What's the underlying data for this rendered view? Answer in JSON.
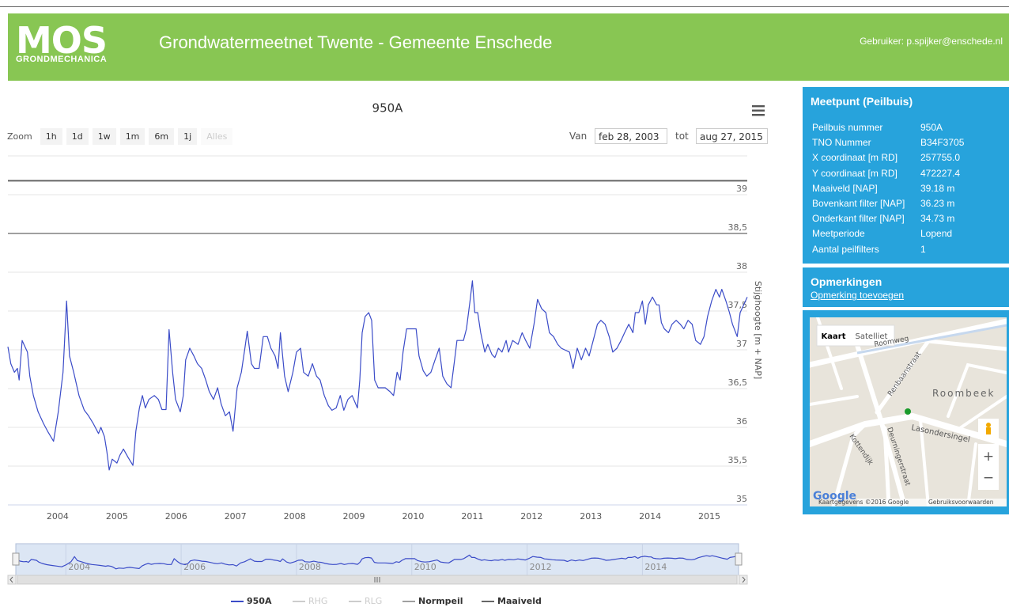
{
  "header": {
    "logo": "MOS",
    "logo_sub": "GRONDMECHANICA",
    "title": "Grondwatermeetnet Twente - Gemeente Enschede",
    "user": "Gebruiker: p.spijker@enschede.nl"
  },
  "chart_data": {
    "type": "line",
    "title": "950A",
    "zoom": {
      "label": "Zoom",
      "buttons": [
        "1h",
        "1d",
        "1w",
        "1m",
        "6m",
        "1j",
        "Alles"
      ]
    },
    "range": {
      "from_label": "Van",
      "from": "feb 28, 2003",
      "to_label": "tot",
      "to": "aug 27, 2015"
    },
    "y_label": "Stijghoogte [m + NAP]",
    "xlim": [
      2003.16,
      2015.64
    ],
    "xticks": [
      2004,
      2005,
      2006,
      2007,
      2008,
      2009,
      2010,
      2011,
      2012,
      2013,
      2014,
      2015
    ],
    "navigator_xticks": [
      2004,
      2006,
      2008,
      2010,
      2012,
      2014
    ],
    "ylim": [
      35,
      39.5
    ],
    "yticks": [
      35,
      {
        "value": 35.5,
        "label": "35,5"
      },
      36,
      {
        "value": 36.5,
        "label": "36,5"
      },
      37,
      {
        "value": 37.5,
        "label": "37,5"
      },
      38,
      {
        "value": 38.5,
        "label": "38,5"
      },
      39
    ],
    "grid": true,
    "series": [
      {
        "name": "950A",
        "color": "#3b4cc8",
        "width": 1.2,
        "visible": true,
        "x": [
          2003.16,
          2003.21,
          2003.27,
          2003.32,
          2003.35,
          2003.4,
          2003.49,
          2003.53,
          2003.59,
          2003.67,
          2003.76,
          2003.83,
          2003.93,
          2004.01,
          2004.09,
          2004.15,
          2004.2,
          2004.27,
          2004.36,
          2004.45,
          2004.52,
          2004.6,
          2004.69,
          2004.73,
          2004.79,
          2004.83,
          2004.87,
          2004.92,
          2005.0,
          2005.05,
          2005.11,
          2005.19,
          2005.27,
          2005.32,
          2005.38,
          2005.43,
          2005.48,
          2005.54,
          2005.63,
          2005.7,
          2005.76,
          2005.83,
          2005.88,
          2005.94,
          2005.99,
          2006.07,
          2006.12,
          2006.16,
          2006.23,
          2006.3,
          2006.36,
          2006.43,
          2006.5,
          2006.56,
          2006.63,
          2006.7,
          2006.76,
          2006.83,
          2006.9,
          2006.96,
          2007.03,
          2007.1,
          2007.16,
          2007.2,
          2007.27,
          2007.32,
          2007.4,
          2007.47,
          2007.54,
          2007.6,
          2007.67,
          2007.72,
          2007.76,
          2007.83,
          2007.89,
          2007.97,
          2008.03,
          2008.1,
          2008.15,
          2008.23,
          2008.3,
          2008.37,
          2008.43,
          2008.5,
          2008.57,
          2008.63,
          2008.7,
          2008.77,
          2008.83,
          2008.9,
          2008.97,
          2009.06,
          2009.1,
          2009.14,
          2009.19,
          2009.25,
          2009.3,
          2009.35,
          2009.41,
          2009.53,
          2009.61,
          2009.67,
          2009.73,
          2009.78,
          2009.83,
          2009.89,
          2010.05,
          2010.1,
          2010.17,
          2010.23,
          2010.3,
          2010.37,
          2010.44,
          2010.5,
          2010.57,
          2010.64,
          2010.7,
          2010.74,
          2010.85,
          2010.9,
          2010.96,
          2011.0,
          2011.04,
          2011.09,
          2011.14,
          2011.21,
          2011.26,
          2011.33,
          2011.38,
          2011.44,
          2011.5,
          2011.57,
          2011.61,
          2011.68,
          2011.77,
          2011.84,
          2011.9,
          2011.97,
          2012.04,
          2012.1,
          2012.17,
          2012.24,
          2012.3,
          2012.37,
          2012.44,
          2012.5,
          2012.64,
          2012.7,
          2012.77,
          2012.84,
          2012.91,
          2012.97,
          2013.04,
          2013.11,
          2013.17,
          2013.24,
          2013.31,
          2013.37,
          2013.44,
          2013.51,
          2013.57,
          2013.64,
          2013.71,
          2013.75,
          2013.81,
          2013.87,
          2013.92,
          2013.97,
          2014.04,
          2014.11,
          2014.15,
          2014.19,
          2014.24,
          2014.31,
          2014.37,
          2014.44,
          2014.51,
          2014.57,
          2014.64,
          2014.71,
          2014.77,
          2014.85,
          2014.91,
          2014.97,
          2015.04,
          2015.11,
          2015.17,
          2015.21,
          2015.28,
          2015.34,
          2015.39,
          2015.47,
          2015.52,
          2015.58,
          2015.64
        ],
        "values": [
          37.04,
          36.82,
          36.71,
          36.76,
          36.61,
          37.12,
          36.97,
          36.66,
          36.41,
          36.2,
          36.05,
          35.95,
          35.82,
          36.2,
          36.71,
          37.63,
          36.92,
          36.71,
          36.41,
          36.22,
          36.15,
          36.05,
          35.92,
          36.0,
          35.88,
          35.69,
          35.45,
          35.59,
          35.54,
          35.64,
          35.72,
          35.61,
          35.51,
          35.95,
          36.25,
          36.41,
          36.25,
          36.36,
          36.41,
          36.36,
          36.23,
          36.23,
          37.26,
          36.71,
          36.36,
          36.2,
          36.41,
          36.87,
          37.02,
          36.92,
          36.82,
          36.76,
          36.61,
          36.46,
          36.36,
          36.51,
          36.3,
          36.15,
          36.2,
          35.95,
          36.51,
          36.71,
          37.02,
          37.24,
          36.82,
          36.76,
          36.76,
          37.17,
          37.17,
          37.02,
          36.92,
          36.76,
          37.22,
          36.66,
          36.46,
          36.71,
          36.97,
          37.02,
          36.71,
          36.66,
          36.82,
          36.66,
          36.61,
          36.41,
          36.28,
          36.22,
          36.25,
          36.41,
          36.22,
          36.36,
          36.41,
          36.25,
          36.61,
          37.22,
          37.43,
          37.48,
          37.38,
          36.61,
          36.51,
          36.51,
          36.46,
          36.41,
          36.71,
          36.61,
          36.97,
          37.27,
          37.27,
          36.92,
          36.73,
          36.66,
          36.71,
          36.87,
          37.02,
          36.66,
          36.56,
          36.51,
          36.87,
          37.12,
          37.12,
          37.27,
          37.63,
          37.89,
          37.48,
          37.48,
          37.22,
          36.97,
          37.07,
          36.94,
          36.9,
          37.02,
          36.97,
          37.12,
          36.97,
          37.12,
          37.07,
          37.22,
          37.12,
          37.02,
          37.33,
          37.65,
          37.53,
          37.48,
          37.22,
          37.17,
          37.07,
          37.02,
          36.97,
          36.76,
          37.02,
          36.87,
          37.02,
          36.92,
          37.12,
          37.33,
          37.38,
          37.33,
          37.17,
          36.97,
          37.02,
          37.12,
          37.22,
          37.33,
          37.22,
          37.48,
          37.48,
          37.63,
          37.33,
          37.58,
          37.68,
          37.58,
          37.58,
          37.35,
          37.27,
          37.22,
          37.33,
          37.38,
          37.33,
          37.27,
          37.38,
          37.33,
          37.12,
          37.07,
          37.17,
          37.43,
          37.63,
          37.78,
          37.68,
          37.78,
          37.63,
          37.48,
          37.33,
          37.17,
          37.48,
          37.58,
          37.68
        ]
      },
      {
        "name": "RHG",
        "color": "#cccccc",
        "width": 1,
        "visible": false,
        "x": [],
        "values": []
      },
      {
        "name": "RLG",
        "color": "#cccccc",
        "width": 1,
        "visible": false,
        "x": [],
        "values": []
      },
      {
        "name": "Normpeil",
        "color": "#a0a0a0",
        "width": 2,
        "visible": true,
        "x": [
          2003.16,
          2015.64
        ],
        "values": [
          38.5,
          38.5
        ]
      },
      {
        "name": "Maaiveld",
        "color": "#666666",
        "width": 2,
        "visible": true,
        "x": [
          2003.16,
          2015.64
        ],
        "values": [
          39.18,
          39.18
        ]
      }
    ]
  },
  "sidebar": {
    "meetpunt": {
      "title": "Meetpunt (Peilbuis)",
      "rows": [
        [
          "Peilbuis nummer",
          "950A"
        ],
        [
          "TNO Nummer",
          "B34F3705"
        ],
        [
          "X coordinaat [m RD]",
          "257755.0"
        ],
        [
          "Y coordinaat [m RD]",
          "472227.4"
        ],
        [
          "Maaiveld [NAP]",
          "39.18 m"
        ],
        [
          "Bovenkant filter [NAP]",
          "36.23 m"
        ],
        [
          "Onderkant filter [NAP]",
          "34.73 m"
        ],
        [
          "Meetperiode",
          "Lopend"
        ],
        [
          "Aantal peilfilters",
          "1"
        ]
      ]
    },
    "opmerkingen": {
      "title": "Opmerkingen",
      "link": "Opmerking toevoegen"
    },
    "map": {
      "buttons": [
        "Kaart",
        "Satelliet"
      ],
      "labels": [
        "Roomweg",
        "Renbaanstraat",
        "Roombeek",
        "Lasondersingel",
        "Kottendijk",
        "Deurningerstraat"
      ],
      "zoom_in": "+",
      "zoom_out": "−",
      "logo": "Google",
      "attribution": "Kaartgegevens ©2016 Google",
      "terms": "Gebruiksvoorwaarden"
    }
  }
}
